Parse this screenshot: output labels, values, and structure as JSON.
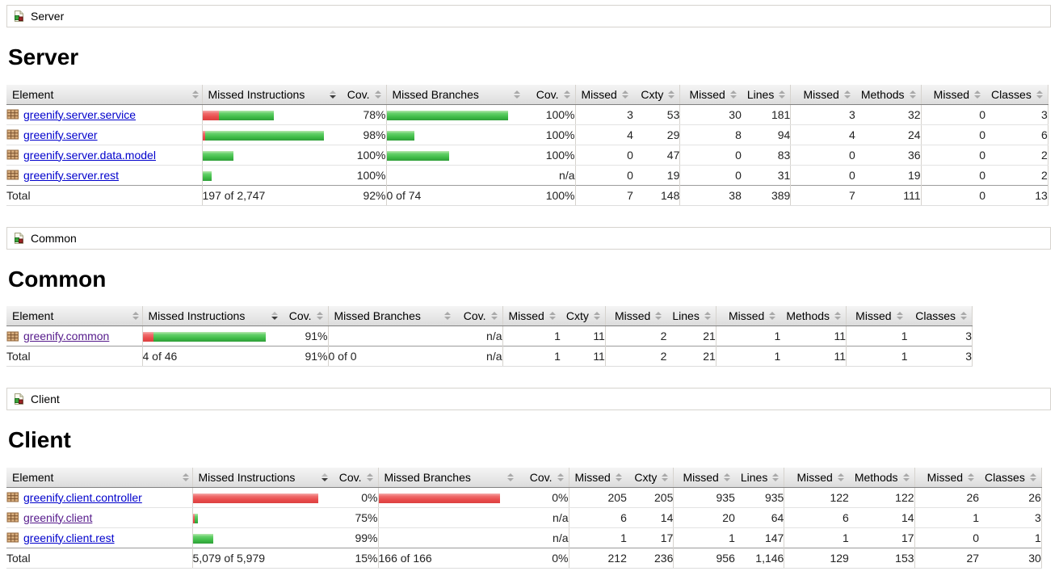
{
  "colors": {
    "bar_green": "#3fbc47",
    "bar_red": "#e94c4c",
    "link": "#0000cc",
    "visited_link": "#551a8b",
    "header_bg": "#dcdcdc",
    "border": "#d6d3ce"
  },
  "columns": [
    {
      "label": "Element",
      "sorted": false
    },
    {
      "label": "Missed Instructions",
      "sorted": true
    },
    {
      "label": "Cov.",
      "sorted": false
    },
    {
      "label": "Missed Branches",
      "sorted": false
    },
    {
      "label": "Cov.",
      "sorted": false
    },
    {
      "label": "Missed",
      "sorted": false
    },
    {
      "label": "Cxty",
      "sorted": false
    },
    {
      "label": "Missed",
      "sorted": false
    },
    {
      "label": "Lines",
      "sorted": false
    },
    {
      "label": "Missed",
      "sorted": false
    },
    {
      "label": "Methods",
      "sorted": false
    },
    {
      "label": "Missed",
      "sorted": false
    },
    {
      "label": "Classes",
      "sorted": false
    }
  ],
  "sections": [
    {
      "id": "server",
      "breadcrumb": "Server",
      "title": "Server",
      "rows": [
        {
          "element": "greenify.server.service",
          "visited": false,
          "instr_bar": {
            "red": 20,
            "green": 68
          },
          "instr_cov": "78%",
          "branch_bar": {
            "red": 0,
            "green": 150
          },
          "branch_cov": "100%",
          "cells": [
            "3",
            "53",
            "30",
            "181",
            "3",
            "32",
            "0",
            "3"
          ]
        },
        {
          "element": "greenify.server",
          "visited": false,
          "instr_bar": {
            "red": 3,
            "green": 147
          },
          "instr_cov": "98%",
          "branch_bar": {
            "red": 0,
            "green": 34
          },
          "branch_cov": "100%",
          "cells": [
            "4",
            "29",
            "8",
            "94",
            "4",
            "24",
            "0",
            "6"
          ]
        },
        {
          "element": "greenify.server.data.model",
          "visited": false,
          "instr_bar": {
            "red": 0,
            "green": 38
          },
          "instr_cov": "100%",
          "branch_bar": {
            "red": 0,
            "green": 77
          },
          "branch_cov": "100%",
          "cells": [
            "0",
            "47",
            "0",
            "83",
            "0",
            "36",
            "0",
            "2"
          ]
        },
        {
          "element": "greenify.server.rest",
          "visited": false,
          "instr_bar": {
            "red": 0,
            "green": 11
          },
          "instr_cov": "100%",
          "branch_bar": {
            "red": 0,
            "green": 0
          },
          "branch_cov": "n/a",
          "cells": [
            "0",
            "19",
            "0",
            "31",
            "0",
            "19",
            "0",
            "2"
          ]
        }
      ],
      "total": {
        "label": "Total",
        "instr": "197 of 2,747",
        "instr_cov": "92%",
        "branch": "0 of 74",
        "branch_cov": "100%",
        "cells": [
          "7",
          "148",
          "38",
          "389",
          "7",
          "111",
          "0",
          "13"
        ]
      }
    },
    {
      "id": "common",
      "breadcrumb": "Common",
      "title": "Common",
      "rows": [
        {
          "element": "greenify.common",
          "visited": true,
          "instr_bar": {
            "red": 13,
            "green": 139
          },
          "instr_cov": "91%",
          "branch_bar": {
            "red": 0,
            "green": 0
          },
          "branch_cov": "n/a",
          "cells": [
            "1",
            "11",
            "2",
            "21",
            "1",
            "11",
            "1",
            "3"
          ]
        }
      ],
      "total": {
        "label": "Total",
        "instr": "4 of 46",
        "instr_cov": "91%",
        "branch": "0 of 0",
        "branch_cov": "n/a",
        "cells": [
          "1",
          "11",
          "2",
          "21",
          "1",
          "11",
          "1",
          "3"
        ]
      }
    },
    {
      "id": "client",
      "breadcrumb": "Client",
      "title": "Client",
      "rows": [
        {
          "element": "greenify.client.controller",
          "visited": false,
          "instr_bar": {
            "red": 155,
            "green": 0
          },
          "instr_cov": "0%",
          "branch_bar": {
            "red": 150,
            "green": 0
          },
          "branch_cov": "0%",
          "cells": [
            "205",
            "205",
            "935",
            "935",
            "122",
            "122",
            "26",
            "26"
          ]
        },
        {
          "element": "greenify.client",
          "visited": true,
          "instr_bar": {
            "red": 2,
            "green": 4
          },
          "instr_cov": "75%",
          "branch_bar": {
            "red": 0,
            "green": 0
          },
          "branch_cov": "n/a",
          "cells": [
            "6",
            "14",
            "20",
            "64",
            "6",
            "14",
            "1",
            "3"
          ]
        },
        {
          "element": "greenify.client.rest",
          "visited": false,
          "instr_bar": {
            "red": 0,
            "green": 25
          },
          "instr_cov": "99%",
          "branch_bar": {
            "red": 0,
            "green": 0
          },
          "branch_cov": "n/a",
          "cells": [
            "1",
            "17",
            "1",
            "147",
            "1",
            "17",
            "0",
            "1"
          ]
        }
      ],
      "total": {
        "label": "Total",
        "instr": "5,079 of 5,979",
        "instr_cov": "15%",
        "branch": "166 of 166",
        "branch_cov": "0%",
        "cells": [
          "212",
          "236",
          "956",
          "1,146",
          "129",
          "153",
          "27",
          "30"
        ]
      }
    }
  ]
}
